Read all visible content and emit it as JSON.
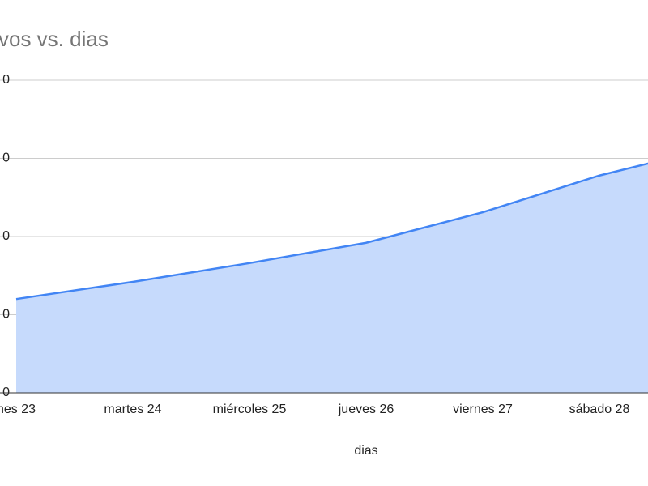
{
  "chart_data": {
    "type": "area",
    "title": "vos vs. dias",
    "x_label": "dias",
    "categories": [
      "nes 23",
      "martes 24",
      "miércoles 25",
      "jueves 26",
      "viernes 27",
      "sábado 28",
      null
    ],
    "series": [
      {
        "name": "positivos",
        "color": "#4285f4",
        "fill": "#c6dafc",
        "values": [
          120,
          142,
          166,
          192,
          231,
          278,
          315
        ]
      }
    ],
    "ylim": [
      0,
      400
    ],
    "yticks": [
      {
        "value": 0,
        "label": "0"
      },
      {
        "value": 100,
        "label": "0"
      },
      {
        "value": 200,
        "label": "0"
      },
      {
        "value": 300,
        "label": "0"
      },
      {
        "value": 400,
        "label": "0"
      }
    ],
    "grid": true
  }
}
